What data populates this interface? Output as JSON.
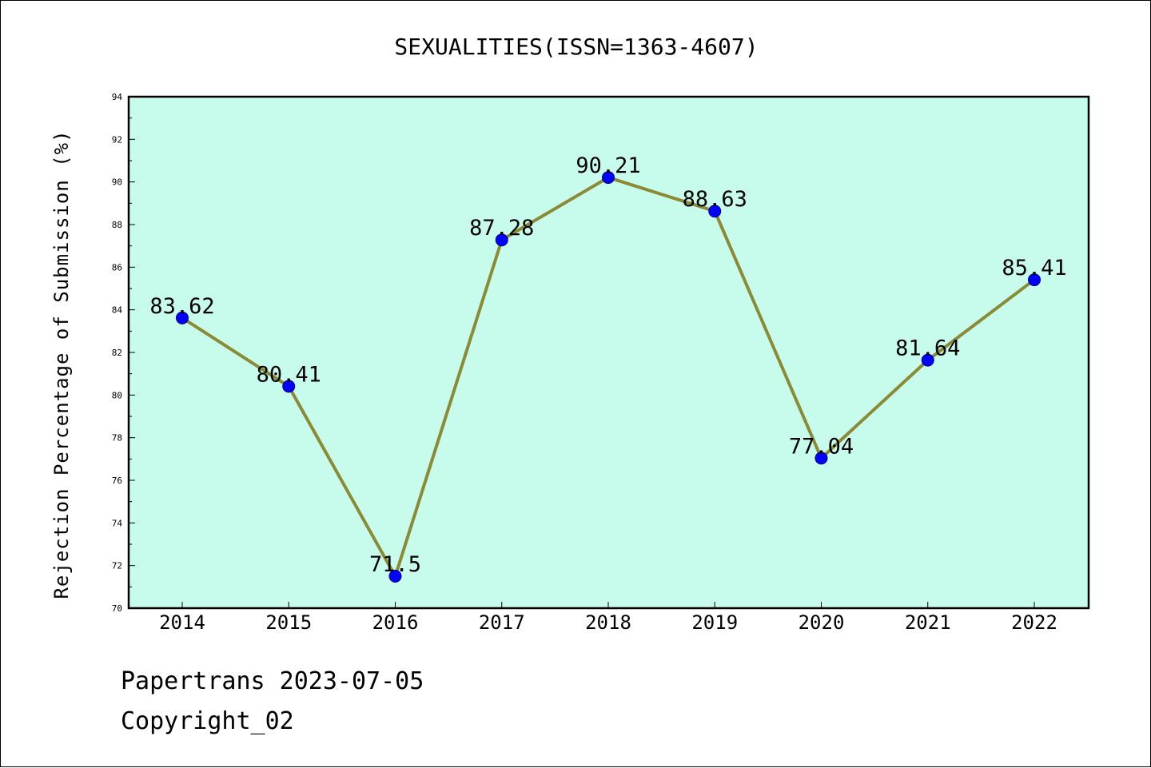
{
  "chart_data": {
    "type": "line",
    "title": "SEXUALITIES(ISSN=1363-4607)",
    "xlabel": "",
    "ylabel": "Rejection Percentage of Submission (%)",
    "categories": [
      "2014",
      "2015",
      "2016",
      "2017",
      "2018",
      "2019",
      "2020",
      "2021",
      "2022"
    ],
    "values": [
      83.62,
      80.41,
      71.5,
      87.28,
      90.21,
      88.63,
      77.04,
      81.64,
      85.41
    ],
    "data_labels": [
      "83.62",
      "80.41",
      "71.5",
      "87.28",
      "90.21",
      "88.63",
      "77.04",
      "81.64",
      "85.41"
    ],
    "ylim": [
      70,
      94
    ],
    "yticks": [
      "70",
      "72",
      "74",
      "76",
      "78",
      "80",
      "82",
      "84",
      "86",
      "88",
      "90",
      "92",
      "94"
    ],
    "grid": false,
    "legend": "none",
    "colors": {
      "plot_background": "#c7fcec",
      "line": "#8b8a35",
      "marker_fill": "#0000ff",
      "marker_edge": "#00008b"
    }
  },
  "footer": {
    "line1": "Papertrans 2023-07-05",
    "line2": "Copyright_02"
  }
}
